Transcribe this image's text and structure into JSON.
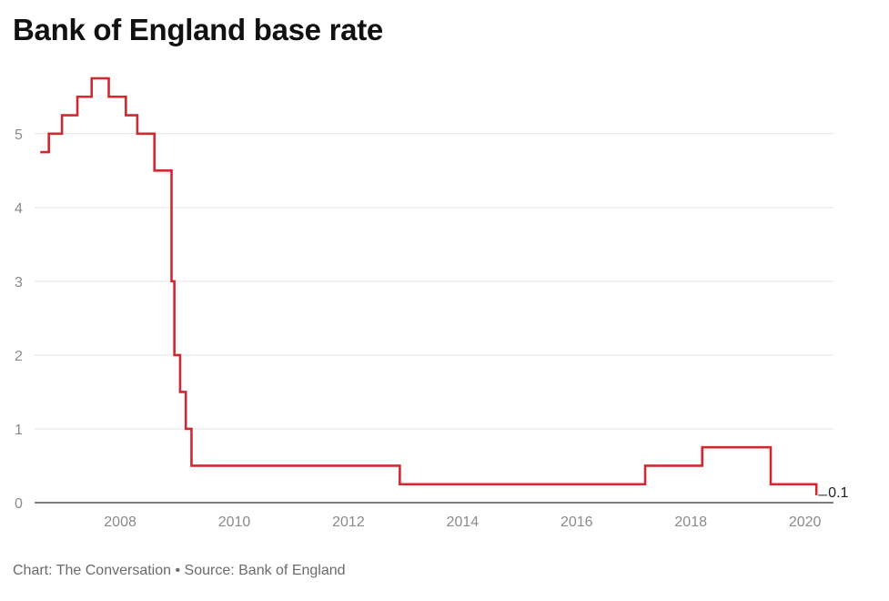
{
  "title": "Bank of England base rate",
  "footer": {
    "chart_credit": "Chart: The Conversation",
    "separator": "•",
    "source": "Source: Bank of England"
  },
  "colors": {
    "line": "#d0292f",
    "grid": "#e3e3e3",
    "axis": "#333333",
    "tick_text": "#8a8a8a"
  },
  "chart_data": {
    "type": "line",
    "title": "Bank of England base rate",
    "xlabel": "",
    "ylabel": "",
    "xlim": [
      2006.5,
      2020.5
    ],
    "ylim": [
      0,
      5.75
    ],
    "x_ticks": [
      2008,
      2010,
      2012,
      2014,
      2016,
      2018,
      2020
    ],
    "y_ticks": [
      0,
      1,
      2,
      3,
      4,
      5
    ],
    "grid": true,
    "legend": "none",
    "end_label": "0.1",
    "series": [
      {
        "step": true,
        "points": [
          [
            2006.6,
            4.75
          ],
          [
            2006.75,
            5.0
          ],
          [
            2006.98,
            5.25
          ],
          [
            2007.25,
            5.5
          ],
          [
            2007.5,
            5.75
          ],
          [
            2007.8,
            5.5
          ],
          [
            2008.1,
            5.25
          ],
          [
            2008.3,
            5.0
          ],
          [
            2008.6,
            4.5
          ],
          [
            2008.9,
            3.0
          ],
          [
            2008.95,
            2.0
          ],
          [
            2009.05,
            1.5
          ],
          [
            2009.15,
            1.0
          ],
          [
            2009.25,
            0.5
          ],
          [
            2012.9,
            0.25
          ],
          [
            2017.2,
            0.5
          ],
          [
            2018.2,
            0.75
          ],
          [
            2019.4,
            0.25
          ],
          [
            2020.2,
            0.1
          ]
        ]
      }
    ]
  }
}
